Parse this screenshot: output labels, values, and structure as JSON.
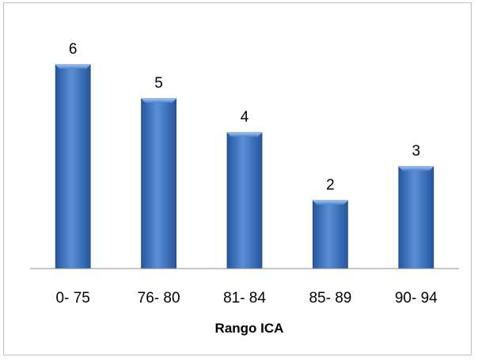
{
  "chart_data": {
    "type": "bar",
    "categories": [
      "0- 75",
      "76- 80",
      "81- 84",
      "85- 89",
      "90- 94"
    ],
    "values": [
      6,
      5,
      4,
      2,
      3
    ],
    "title": "",
    "xlabel": "Rango  ICA",
    "ylabel": "",
    "ylim": [
      0,
      6
    ],
    "grid": false,
    "legend": "none",
    "data_labels": true,
    "colors": {
      "bar_fill_light": "#5a8fd6",
      "bar_fill_mid": "#3a6fbf",
      "bar_fill_dark": "#25569e",
      "bar_top": "#7ea9e2",
      "axis": "#8c8c8c",
      "frame_border": "#bfbfbf"
    }
  }
}
